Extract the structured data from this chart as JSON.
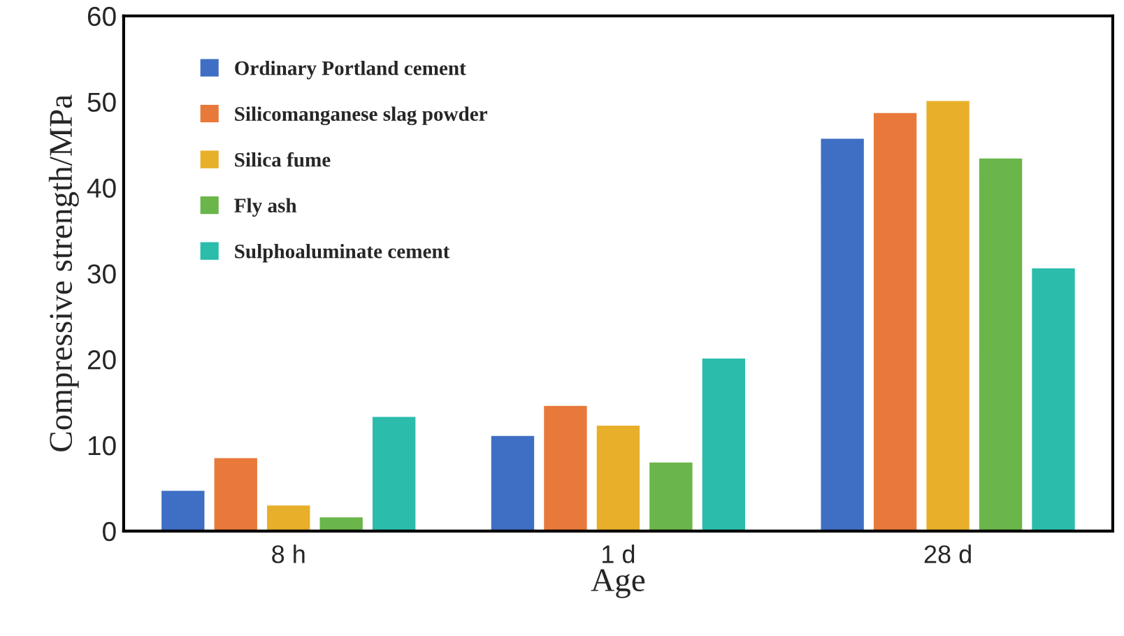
{
  "chart_data": {
    "type": "bar",
    "xlabel": "Age",
    "ylabel": "Compressive strength/MPa",
    "categories": [
      "8 h",
      "1 d",
      "28 d"
    ],
    "series": [
      {
        "name": "Ordinary Portland cement",
        "color": "#3f6fc4",
        "values": [
          4.8,
          11.2,
          45.8
        ]
      },
      {
        "name": "Silicomanganese slag powder",
        "color": "#e8793a",
        "values": [
          8.6,
          14.7,
          48.8
        ]
      },
      {
        "name": "Silica fume",
        "color": "#e8b02a",
        "values": [
          3.1,
          12.4,
          50.2
        ]
      },
      {
        "name": "Fly ash",
        "color": "#6ab64a",
        "values": [
          1.7,
          8.1,
          43.5
        ]
      },
      {
        "name": "Sulphoaluminate cement",
        "color": "#2bbcab",
        "values": [
          13.4,
          20.2,
          30.7
        ]
      }
    ],
    "ylim": [
      0,
      60
    ],
    "yticks": [
      0,
      10,
      20,
      30,
      40,
      50,
      60
    ],
    "grid": false,
    "legend": "top left"
  }
}
